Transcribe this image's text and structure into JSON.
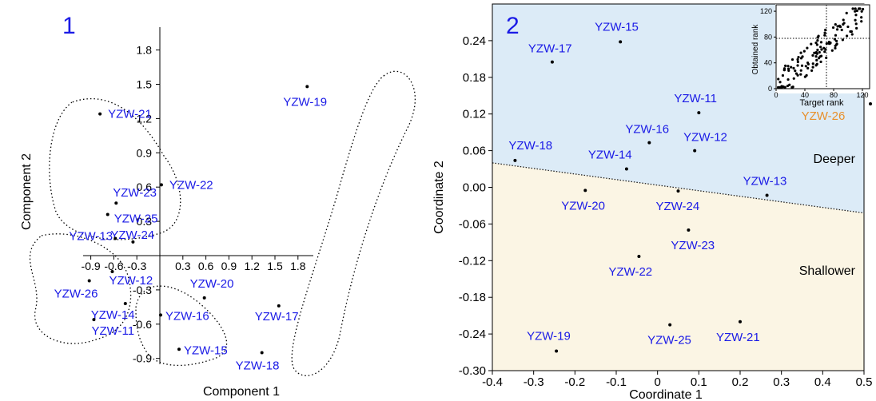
{
  "panel_labels": [
    "1",
    "2"
  ],
  "chart_data": [
    {
      "type": "scatter",
      "panel_label": "1",
      "xlabel": "Component 1",
      "ylabel": "Component 2",
      "xticks": [
        "-0.9",
        "-0.6",
        "-0.3",
        "0.3",
        "0.6",
        "0.9",
        "1.2",
        "1.5",
        "1.8"
      ],
      "yticks": [
        "1.8",
        "1.5",
        "1.2",
        "0.9",
        "0.6",
        "0.3",
        "-0.3",
        "-0.6",
        "-0.9"
      ],
      "xlim": [
        -1.0,
        2.0
      ],
      "ylim": [
        -0.95,
        2.0
      ],
      "grid": false,
      "points": [
        {
          "label": "YZW-19",
          "x": 1.92,
          "y": 1.48
        },
        {
          "label": "YZW-21",
          "x": -0.78,
          "y": 1.24
        },
        {
          "label": "YZW-22",
          "x": 0.02,
          "y": 0.62
        },
        {
          "label": "YZW-23",
          "x": -0.57,
          "y": 0.46
        },
        {
          "label": "YZW-25",
          "x": -0.68,
          "y": 0.36
        },
        {
          "label": "YZW-24",
          "x": -0.35,
          "y": 0.12
        },
        {
          "label": "YZW-13",
          "x": -0.58,
          "y": 0.15
        },
        {
          "label": "YZW-12",
          "x": -0.62,
          "y": -0.14
        },
        {
          "label": "YZW-26",
          "x": -0.92,
          "y": -0.22
        },
        {
          "label": "YZW-14",
          "x": -0.45,
          "y": -0.42
        },
        {
          "label": "YZW-11",
          "x": -0.86,
          "y": -0.56
        },
        {
          "label": "YZW-20",
          "x": 0.58,
          "y": -0.37
        },
        {
          "label": "YZW-16",
          "x": 0.01,
          "y": -0.52
        },
        {
          "label": "YZW-15",
          "x": 0.25,
          "y": -0.82
        },
        {
          "label": "YZW-17",
          "x": 1.55,
          "y": -0.44
        },
        {
          "label": "YZW-18",
          "x": 1.33,
          "y": -0.85
        }
      ]
    },
    {
      "type": "scatter",
      "panel_label": "2",
      "xlabel": "Coordinate 1",
      "ylabel": "Coordinate 2",
      "xticks": [
        "-0.4",
        "-0.3",
        "-0.2",
        "-0.1",
        "0",
        "0.1",
        "0.2",
        "0.3",
        "0.4",
        "0.5"
      ],
      "yticks": [
        "0.24",
        "0.18",
        "0.12",
        "0.06",
        "0.00",
        "-0.06",
        "-0.12",
        "-0.18",
        "-0.24",
        "-0.30"
      ],
      "xlim": [
        -0.4,
        0.5
      ],
      "ylim": [
        -0.3,
        0.3
      ],
      "grid": false,
      "boundary": {
        "x": [
          -0.4,
          0.5
        ],
        "y": [
          0.04,
          -0.042
        ]
      },
      "regions": [
        {
          "label": "Deeper",
          "color": "#dcebf7"
        },
        {
          "label": "Shallower",
          "color": "#fbf5e4"
        }
      ],
      "points": [
        {
          "label": "YZW-15",
          "x": -0.09,
          "y": 0.238
        },
        {
          "label": "YZW-17",
          "x": -0.255,
          "y": 0.205
        },
        {
          "label": "YZW-11",
          "x": 0.1,
          "y": 0.122
        },
        {
          "label": "YZW-16",
          "x": -0.02,
          "y": 0.073
        },
        {
          "label": "YZW-12",
          "x": 0.09,
          "y": 0.06
        },
        {
          "label": "YZW-18",
          "x": -0.345,
          "y": 0.044
        },
        {
          "label": "YZW-14",
          "x": -0.075,
          "y": 0.03
        },
        {
          "label": "YZW-13",
          "x": 0.265,
          "y": -0.013
        },
        {
          "label": "YZW-20",
          "x": -0.175,
          "y": -0.005
        },
        {
          "label": "YZW-24",
          "x": 0.05,
          "y": -0.006
        },
        {
          "label": "YZW-23",
          "x": 0.075,
          "y": -0.07
        },
        {
          "label": "YZW-22",
          "x": -0.045,
          "y": -0.113
        },
        {
          "label": "YZW-25",
          "x": 0.03,
          "y": -0.225
        },
        {
          "label": "YZW-21",
          "x": 0.2,
          "y": -0.22
        },
        {
          "label": "YZW-19",
          "x": -0.245,
          "y": -0.268
        }
      ],
      "inset": {
        "type": "scatter",
        "xlabel": "Target rank",
        "ylabel": "Obtained rank",
        "xticks": [
          "0",
          "40",
          "80",
          "120"
        ],
        "yticks": [
          "0",
          "40",
          "80",
          "120"
        ],
        "xlim": [
          0,
          130
        ],
        "ylim": [
          0,
          130
        ],
        "reference_lines": {
          "x": 70,
          "y": 78
        },
        "extra_label": "YZW-26",
        "extra_label_color": "#e8902c"
      }
    }
  ],
  "colors": {
    "label": "#1a1ae6",
    "accent": "#e8902c",
    "deeper": "#dcebf7",
    "shallower": "#fbf5e4"
  }
}
